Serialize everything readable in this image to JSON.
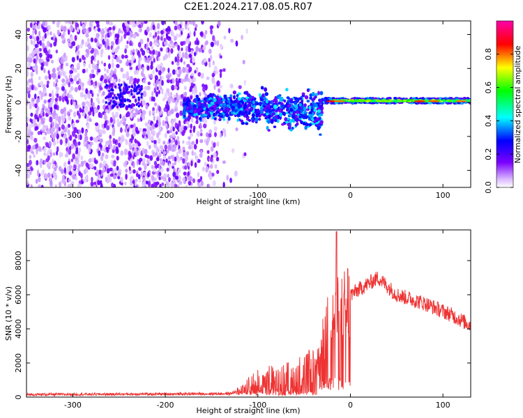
{
  "title": "C2E1.2024.217.08.05.R07",
  "chart_data": [
    {
      "type": "heatmap",
      "xlabel": "Height of straight line (km)",
      "ylabel": "Frequency (Hz)",
      "xlim": [
        -350,
        130
      ],
      "ylim": [
        -50,
        48
      ],
      "xticks": [
        -300,
        -200,
        -100,
        0,
        100
      ],
      "yticks": [
        -40,
        -20,
        0,
        20,
        40
      ],
      "colorbar": {
        "label": "Normalized spectral amplitude",
        "range": [
          0,
          1
        ],
        "ticks": [
          0.0,
          0.2,
          0.4,
          0.6,
          0.8
        ],
        "colors": [
          "#ffffff",
          "#d9b8ff",
          "#7a00ff",
          "#0000ff",
          "#00ffff",
          "#00ff00",
          "#ffff00",
          "#ff0000",
          "#ff00aa"
        ]
      },
      "features": [
        {
          "x_range": [
            -350,
            -140
          ],
          "freq_range": [
            -50,
            48
          ],
          "amplitude": 0.05
        },
        {
          "x_range": [
            -180,
            -30
          ],
          "freq_center": -3,
          "freq_width": 12,
          "amplitude": 0.3
        },
        {
          "x_range": [
            -30,
            130
          ],
          "freq_center": 1,
          "freq_width": 3,
          "amplitude": 0.8
        }
      ]
    },
    {
      "type": "line",
      "xlabel": "Height of straight line (km)",
      "ylabel": "SNR (10 * v/v)",
      "xlim": [
        -350,
        130
      ],
      "ylim": [
        0,
        9800
      ],
      "xticks": [
        -300,
        -200,
        -100,
        0,
        100
      ],
      "yticks": [
        0,
        2000,
        4000,
        6000,
        8000
      ],
      "color": "#ee3333",
      "series_envelope": [
        {
          "x": -350,
          "y": 150
        },
        {
          "x": -200,
          "y": 180
        },
        {
          "x": -130,
          "y": 200
        },
        {
          "x": -120,
          "y": 400
        },
        {
          "x": -100,
          "y": 1000
        },
        {
          "x": -60,
          "y": 1300
        },
        {
          "x": -35,
          "y": 2000
        },
        {
          "x": -25,
          "y": 4500
        },
        {
          "x": -15,
          "y": 5000
        },
        {
          "x": 0,
          "y": 6000
        },
        {
          "x": 30,
          "y": 7000
        },
        {
          "x": 50,
          "y": 6000
        },
        {
          "x": 80,
          "y": 5500
        },
        {
          "x": 110,
          "y": 4800
        },
        {
          "x": 130,
          "y": 4200
        }
      ],
      "peak": {
        "x": -15,
        "y": 9700
      }
    }
  ]
}
